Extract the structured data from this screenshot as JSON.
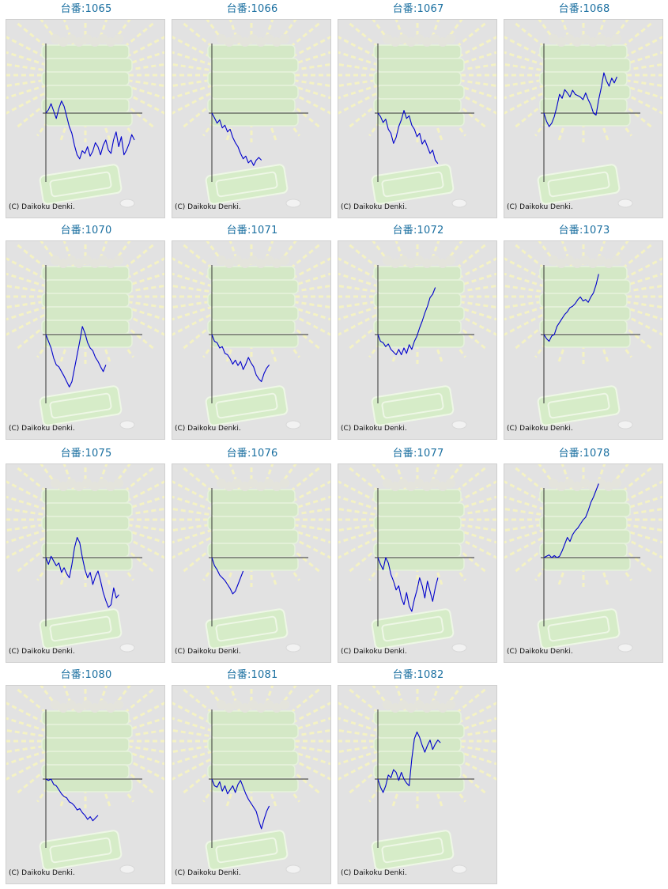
{
  "copyright": "(C) Daikoku Denki.",
  "line_color": "#0000cc",
  "title_color": "#1a6fa0",
  "chart_data": [
    {
      "type": "line",
      "title": "台番:1065",
      "values": [
        0,
        5,
        14,
        3,
        -8,
        7,
        18,
        10,
        -5,
        -20,
        -30,
        -48,
        -62,
        -68,
        -56,
        -60,
        -50,
        -64,
        -57,
        -44,
        -50,
        -62,
        -48,
        -40,
        -55,
        -60,
        -40,
        -28,
        -50,
        -35,
        -62,
        -55,
        -45,
        -32,
        -40
      ]
    },
    {
      "type": "line",
      "title": "台番:1066",
      "values": [
        0,
        -7,
        -15,
        -10,
        -22,
        -18,
        -28,
        -24,
        -36,
        -44,
        -50,
        -60,
        -68,
        -64,
        -74,
        -70,
        -78,
        -70,
        -66,
        -70
      ]
    },
    {
      "type": "line",
      "title": "台番:1067",
      "values": [
        0,
        -5,
        -14,
        -9,
        -24,
        -30,
        -45,
        -36,
        -20,
        -10,
        4,
        -8,
        -4,
        -18,
        -24,
        -35,
        -30,
        -46,
        -40,
        -50,
        -60,
        -55,
        -70,
        -75
      ]
    },
    {
      "type": "line",
      "title": "台番:1068",
      "values": [
        0,
        -12,
        -20,
        -15,
        -5,
        10,
        28,
        22,
        35,
        30,
        24,
        34,
        28,
        26,
        24,
        20,
        30,
        20,
        12,
        0,
        -3,
        20,
        38,
        60,
        48,
        40,
        52,
        45,
        54
      ]
    },
    {
      "type": "line",
      "title": "台番:1070",
      "values": [
        0,
        -10,
        -20,
        -35,
        -45,
        -48,
        -55,
        -62,
        -70,
        -78,
        -70,
        -50,
        -30,
        -10,
        12,
        2,
        -12,
        -20,
        -24,
        -34,
        -40,
        -48,
        -55,
        -45
      ]
    },
    {
      "type": "line",
      "title": "台番:1071",
      "values": [
        0,
        -10,
        -12,
        -20,
        -18,
        -28,
        -30,
        -36,
        -44,
        -38,
        -46,
        -40,
        -52,
        -44,
        -34,
        -42,
        -48,
        -60,
        -66,
        -70,
        -58,
        -50,
        -45
      ]
    },
    {
      "type": "line",
      "title": "台番:1072",
      "values": [
        0,
        -10,
        -12,
        -18,
        -14,
        -22,
        -26,
        -30,
        -22,
        -30,
        -20,
        -28,
        -15,
        -22,
        -10,
        -2,
        10,
        20,
        32,
        42,
        55,
        60,
        70
      ]
    },
    {
      "type": "line",
      "title": "台番:1073",
      "values": [
        0,
        -6,
        -10,
        -2,
        0,
        12,
        18,
        24,
        30,
        34,
        40,
        42,
        46,
        52,
        56,
        50,
        52,
        48,
        56,
        62,
        74,
        90
      ]
    },
    {
      "type": "line",
      "title": "台番:1075",
      "values": [
        0,
        -10,
        2,
        -5,
        -12,
        -8,
        -22,
        -15,
        -24,
        -30,
        -10,
        15,
        30,
        22,
        0,
        -18,
        -30,
        -22,
        -40,
        -28,
        -20,
        -35,
        -52,
        -64,
        -74,
        -70,
        -45,
        -60,
        -55
      ]
    },
    {
      "type": "line",
      "title": "台番:1076",
      "values": [
        0,
        -12,
        -18,
        -26,
        -30,
        -34,
        -40,
        -46,
        -54,
        -50,
        -40,
        -30,
        -20
      ]
    },
    {
      "type": "line",
      "title": "台番:1077",
      "values": [
        0,
        -10,
        -18,
        0,
        -8,
        -25,
        -35,
        -48,
        -42,
        -60,
        -70,
        -52,
        -72,
        -80,
        -62,
        -48,
        -30,
        -42,
        -60,
        -35,
        -50,
        -65,
        -45,
        -30
      ]
    },
    {
      "type": "line",
      "title": "台番:1078",
      "values": [
        0,
        2,
        4,
        0,
        3,
        0,
        2,
        10,
        20,
        30,
        24,
        34,
        40,
        44,
        50,
        56,
        60,
        70,
        82,
        90,
        100,
        110
      ]
    },
    {
      "type": "line",
      "title": "台番:1080",
      "values": [
        0,
        -2,
        0,
        -8,
        -10,
        -16,
        -22,
        -26,
        -28,
        -34,
        -36,
        -40,
        -46,
        -44,
        -50,
        -54,
        -60,
        -56,
        -62,
        -58,
        -54
      ]
    },
    {
      "type": "line",
      "title": "台番:1081",
      "values": [
        0,
        -10,
        -12,
        -4,
        -18,
        -10,
        -22,
        -16,
        -10,
        -20,
        -8,
        -2,
        -12,
        -22,
        -30,
        -36,
        -42,
        -48,
        -62,
        -74,
        -60,
        -48,
        -40
      ]
    },
    {
      "type": "line",
      "title": "台番:1082",
      "values": [
        0,
        -12,
        -20,
        -10,
        6,
        2,
        14,
        10,
        -2,
        10,
        0,
        -6,
        -10,
        30,
        60,
        70,
        62,
        50,
        40,
        50,
        58,
        44,
        52,
        58,
        54
      ]
    }
  ]
}
